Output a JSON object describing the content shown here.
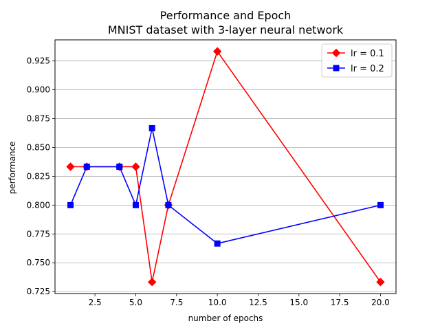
{
  "chart_data": {
    "type": "line",
    "title": "Performance and Epoch",
    "subtitle": "MNIST dataset with 3-layer neural network",
    "xlabel": "number of epochs",
    "ylabel": "performance",
    "xlim": [
      0.05,
      20.95
    ],
    "ylim": [
      0.7233,
      0.9433
    ],
    "x_ticks": [
      2.5,
      5.0,
      7.5,
      10.0,
      12.5,
      15.0,
      17.5,
      20.0
    ],
    "x_tick_labels": [
      "2.5",
      "5.0",
      "7.5",
      "10.0",
      "12.5",
      "15.0",
      "17.5",
      "20.0"
    ],
    "y_ticks": [
      0.725,
      0.75,
      0.775,
      0.8,
      0.825,
      0.85,
      0.875,
      0.9,
      0.925
    ],
    "y_tick_labels": [
      "0.725",
      "0.750",
      "0.775",
      "0.800",
      "0.825",
      "0.850",
      "0.875",
      "0.900",
      "0.925"
    ],
    "grid": "horizontal",
    "legend_position": "top-right",
    "series": [
      {
        "name": "lr = 0.1",
        "color": "#ff0000",
        "marker": "diamond",
        "x": [
          1,
          2,
          4,
          5,
          6,
          7,
          10,
          20
        ],
        "y": [
          0.8333,
          0.8333,
          0.8333,
          0.8333,
          0.7333,
          0.8,
          0.9333,
          0.7333
        ]
      },
      {
        "name": "lr = 0.2",
        "color": "#0000ff",
        "marker": "square",
        "x": [
          1,
          2,
          4,
          5,
          6,
          7,
          10,
          20
        ],
        "y": [
          0.8,
          0.8333,
          0.8333,
          0.8,
          0.8667,
          0.8,
          0.7667,
          0.8
        ]
      }
    ]
  }
}
